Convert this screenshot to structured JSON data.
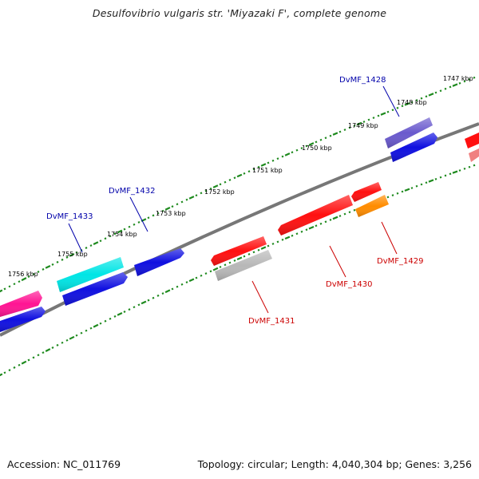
{
  "title": "Desulfovibrio vulgaris str. 'Miyazaki F', complete genome",
  "footer": {
    "accession": "Accession: NC_011769",
    "summary": "Topology: circular; Length: 4,040,304 bp; Genes: 3,256"
  },
  "colors": {
    "backbone": "#7a7a7a",
    "ticks": "#1e8a1e",
    "tick_label": "#111111",
    "forward_label": "#0000aa",
    "reverse_label": "#cc0000"
  },
  "ticks": [
    {
      "label": "1747 kbp"
    },
    {
      "label": "1748 kbp"
    },
    {
      "label": "1749 kbp"
    },
    {
      "label": "1750 kbp"
    },
    {
      "label": "1751 kbp"
    },
    {
      "label": "1752 kbp"
    },
    {
      "label": "1753 kbp"
    },
    {
      "label": "1754 kbp"
    },
    {
      "label": "1755 kbp"
    },
    {
      "label": "1756 kbp"
    }
  ],
  "genes": [
    {
      "name": "DvMF_1428",
      "strand": "forward",
      "color": "#6a5acd",
      "labeled": true
    },
    {
      "name": "",
      "strand": "forward",
      "color": "#1010e0",
      "labeled": false
    },
    {
      "name": "DvMF_1432",
      "strand": "forward",
      "color": "#1010e0",
      "labeled": true
    },
    {
      "name": "DvMF_1433",
      "strand": "forward",
      "color": "#00e5e5",
      "labeled": true
    },
    {
      "name": "",
      "strand": "forward",
      "color": "#1010e0",
      "labeled": false
    },
    {
      "name": "",
      "strand": "forward",
      "color": "#ff1493",
      "labeled": false
    },
    {
      "name": "",
      "strand": "forward",
      "color": "#1010e0",
      "labeled": false
    },
    {
      "name": "",
      "strand": "reverse",
      "color": "#ff1010",
      "labeled": false
    },
    {
      "name": "",
      "strand": "reverse",
      "color": "#f08080",
      "labeled": false
    },
    {
      "name": "DvMF_1429",
      "strand": "reverse",
      "color": "#ff8c00",
      "labeled": true
    },
    {
      "name": "",
      "strand": "reverse",
      "color": "#ff1010",
      "labeled": false
    },
    {
      "name": "DvMF_1430",
      "strand": "reverse",
      "color": "#ff1010",
      "labeled": true
    },
    {
      "name": "",
      "strand": "reverse",
      "color": "#ff1010",
      "labeled": false
    },
    {
      "name": "DvMF_1431",
      "strand": "reverse",
      "color": "#b8b8b8",
      "labeled": true
    }
  ]
}
